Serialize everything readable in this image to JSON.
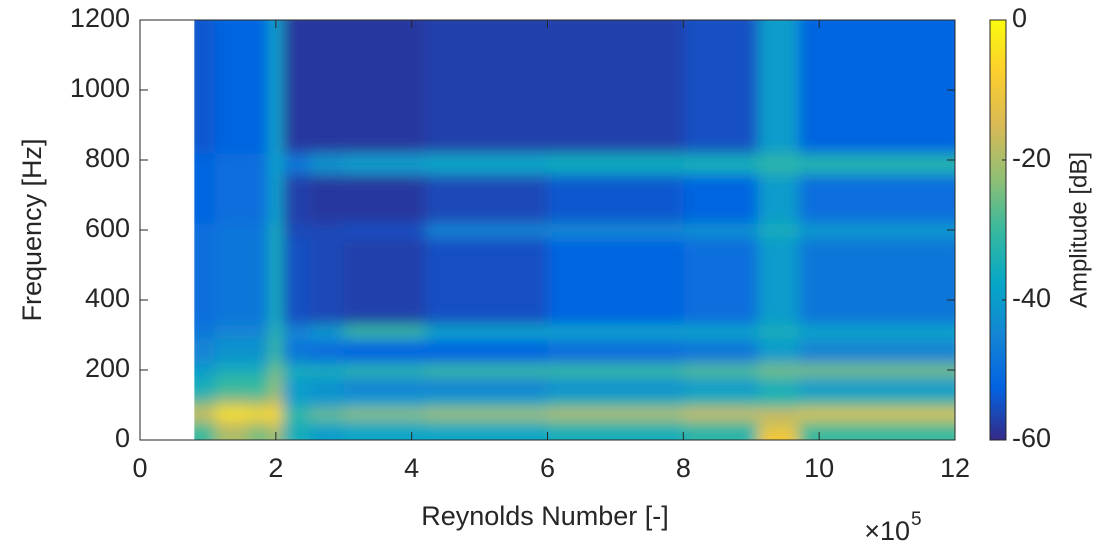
{
  "chart_data": {
    "type": "heatmap",
    "x_label": "Reynolds Number [-]",
    "x_multiplier": "×10",
    "x_exponent": "5",
    "y_label": "Frequency [Hz]",
    "colorbar_label": "Amplitude [dB]",
    "xlim": [
      0,
      12
    ],
    "xticks": [
      0,
      2,
      4,
      6,
      8,
      10,
      12
    ],
    "ylim": [
      0,
      1200
    ],
    "yticks": [
      0,
      200,
      400,
      600,
      800,
      1000,
      1200
    ],
    "clim": [
      -60,
      0
    ],
    "cticks": [
      0,
      -20,
      -40,
      -60
    ],
    "colormap": [
      "#352a87",
      "#0363e1",
      "#1485d4",
      "#06a7c6",
      "#38b99e",
      "#92bf73",
      "#d9ba56",
      "#fcce2e",
      "#f9fb0e"
    ],
    "x": [
      0.8,
      1.1,
      1.6,
      1.9,
      2.1,
      2.5,
      3.0,
      4.2,
      6,
      8,
      9.1,
      9.7,
      12
    ],
    "y": [
      0,
      40,
      60,
      90,
      120,
      180,
      220,
      290,
      330,
      580,
      620,
      760,
      820,
      1200
    ],
    "z": [
      [
        -30,
        -20,
        -25,
        -20,
        -35,
        -40,
        -38,
        -38,
        -35,
        -32,
        -10,
        -30
      ],
      [
        -25,
        -15,
        -18,
        -12,
        -35,
        -35,
        -35,
        -32,
        -30,
        -28,
        -20,
        -25
      ],
      [
        -15,
        -3,
        -5,
        -5,
        -30,
        -25,
        -22,
        -20,
        -18,
        -15,
        -15,
        -12
      ],
      [
        -25,
        -18,
        -20,
        -15,
        -38,
        -40,
        -38,
        -35,
        -32,
        -30,
        -30,
        -28
      ],
      [
        -35,
        -30,
        -30,
        -22,
        -40,
        -42,
        -45,
        -45,
        -42,
        -40,
        -35,
        -40
      ],
      [
        -40,
        -35,
        -35,
        -25,
        -35,
        -35,
        -32,
        -30,
        -30,
        -28,
        -25,
        -25
      ],
      [
        -45,
        -42,
        -42,
        -30,
        -48,
        -50,
        -52,
        -52,
        -50,
        -48,
        -40,
        -45
      ],
      [
        -48,
        -45,
        -45,
        -32,
        -45,
        -40,
        -30,
        -38,
        -38,
        -38,
        -35,
        -38
      ],
      [
        -50,
        -48,
        -48,
        -35,
        -55,
        -56,
        -57,
        -55,
        -52,
        -50,
        -40,
        -48
      ],
      [
        -50,
        -48,
        -48,
        -35,
        -56,
        -56,
        -55,
        -45,
        -44,
        -42,
        -35,
        -40
      ],
      [
        -52,
        -50,
        -50,
        -38,
        -57,
        -58,
        -58,
        -56,
        -54,
        -52,
        -40,
        -50
      ],
      [
        -52,
        -50,
        -50,
        -38,
        -48,
        -42,
        -40,
        -38,
        -36,
        -35,
        -32,
        -33
      ],
      [
        -54,
        -52,
        -52,
        -38,
        -58,
        -58,
        -58,
        -57,
        -57,
        -55,
        -40,
        -52
      ]
    ]
  }
}
